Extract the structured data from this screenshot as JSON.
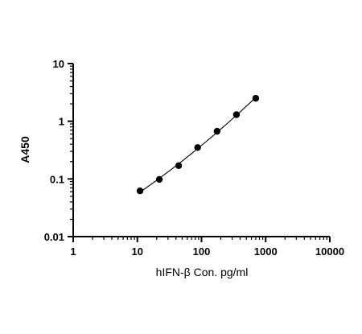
{
  "chart_data": {
    "type": "scatter",
    "xlabel": "hIFN-β Con. pg/ml",
    "ylabel": "A450",
    "x_scale": "log",
    "y_scale": "log",
    "xlim": [
      1,
      10000
    ],
    "ylim": [
      0.01,
      10
    ],
    "x_ticks": [
      "1",
      "10",
      "100",
      "1000",
      "10000"
    ],
    "y_ticks": [
      "0.01",
      "0.1",
      "1",
      "10"
    ],
    "grid": false,
    "fit_line": true,
    "x": [
      11,
      22,
      44,
      87,
      175,
      350,
      700
    ],
    "y": [
      0.062,
      0.098,
      0.17,
      0.35,
      0.67,
      1.3,
      2.5
    ]
  },
  "colors": {
    "axis": "#000000",
    "points": "#000000",
    "line": "#000000"
  }
}
